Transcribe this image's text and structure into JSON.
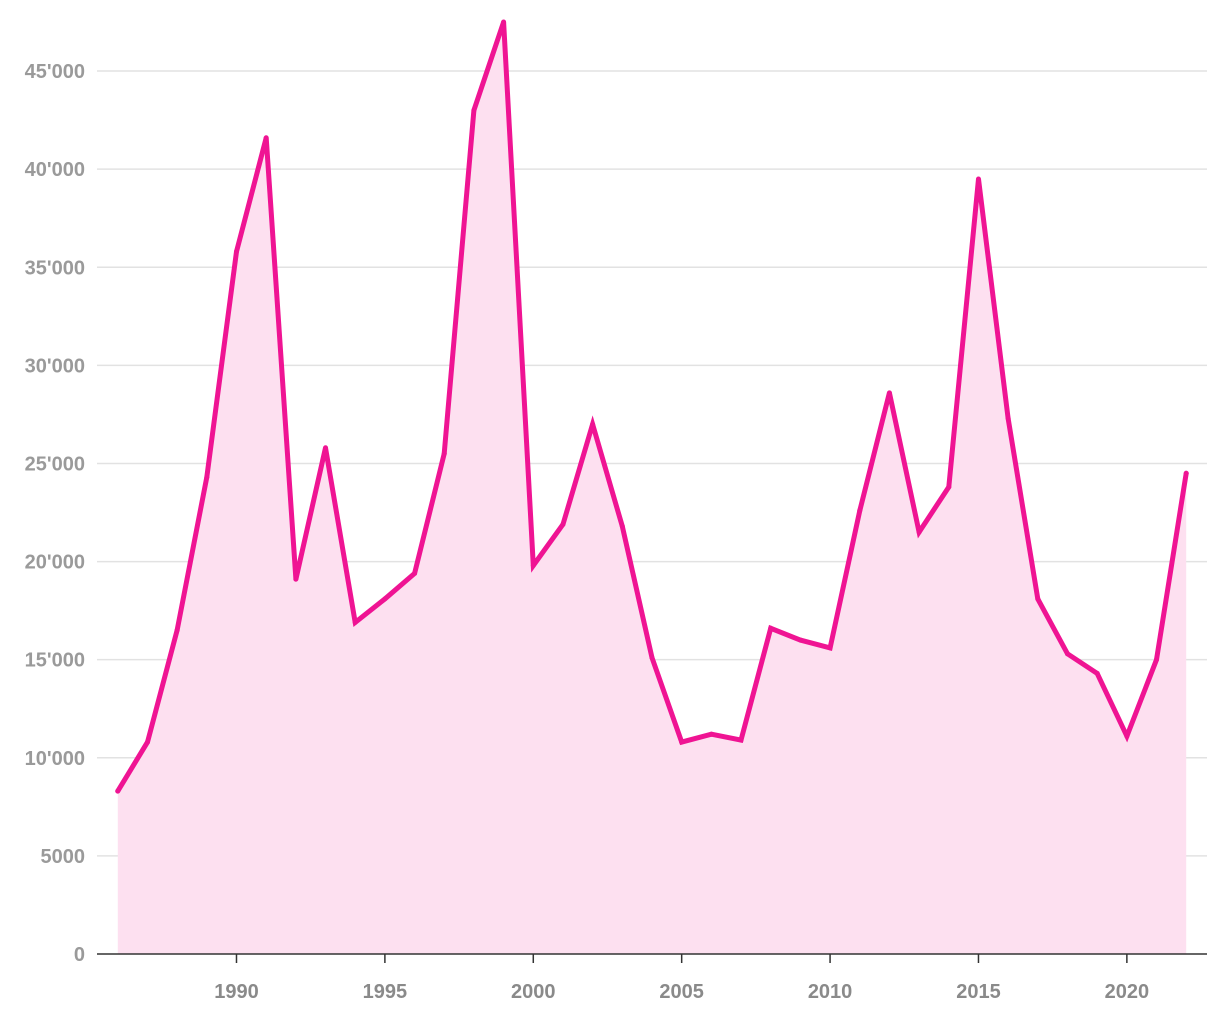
{
  "colors": {
    "line": "#ef1493",
    "area": "#fde0f0",
    "grid": "#e2e2e2",
    "axis": "#333333",
    "tick_text": "#9a9a9a"
  },
  "chart_data": {
    "type": "area",
    "title": "",
    "xlabel": "",
    "ylabel": "",
    "x": [
      1986,
      1987,
      1988,
      1989,
      1990,
      1991,
      1992,
      1993,
      1994,
      1995,
      1996,
      1997,
      1998,
      1999,
      2000,
      2001,
      2002,
      2003,
      2004,
      2005,
      2006,
      2007,
      2008,
      2009,
      2010,
      2011,
      2012,
      2013,
      2014,
      2015,
      2016,
      2017,
      2018,
      2019,
      2020,
      2021,
      2022
    ],
    "series": [
      {
        "values": [
          8300,
          10800,
          16500,
          24300,
          35800,
          41600,
          19100,
          25800,
          16900,
          18100,
          19400,
          25500,
          43000,
          47500,
          19800,
          21900,
          27000,
          21800,
          15100,
          10800,
          11200,
          10900,
          16600,
          16000,
          15600,
          22600,
          28600,
          21500,
          23800,
          39500,
          27300,
          18100,
          15300,
          14300,
          11100,
          15000,
          24500
        ]
      }
    ],
    "xlim": [
      1985.3,
      2022.7
    ],
    "ylim": [
      0,
      47500
    ],
    "x_ticks": [
      1990,
      1995,
      2000,
      2005,
      2010,
      2015,
      2020
    ],
    "x_tick_labels": [
      "1990",
      "1995",
      "2000",
      "2005",
      "2010",
      "2015",
      "2020"
    ],
    "y_ticks": [
      0,
      5000,
      10000,
      15000,
      20000,
      25000,
      30000,
      35000,
      40000,
      45000
    ],
    "y_tick_labels": [
      "0",
      "5000",
      "10'000",
      "15'000",
      "20'000",
      "25'000",
      "30'000",
      "35'000",
      "40'000",
      "45'000"
    ],
    "grid": true,
    "legend": "none"
  }
}
